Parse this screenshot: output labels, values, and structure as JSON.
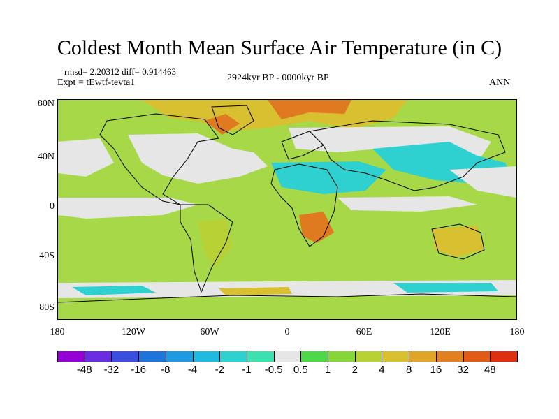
{
  "title": "Coldest Month Mean Surface Air Temperature (in C)",
  "stats": "rmsd= 2.20312 diff= 0.914463",
  "experiment": "Expt = tEwtf-tevta1",
  "period": "2924kyr BP - 0000kyr BP",
  "season": "ANN",
  "axes": {
    "y_ticks": [
      "80N",
      "40N",
      "0",
      "40S",
      "80S"
    ],
    "x_ticks": [
      "180",
      "120W",
      "60W",
      "0",
      "60E",
      "120E",
      "180"
    ]
  },
  "colorbar": {
    "labels": [
      "-48",
      "-32",
      "-16",
      "-8",
      "-4",
      "-2",
      "-1",
      "-0.5",
      "0.5",
      "1",
      "2",
      "4",
      "8",
      "16",
      "32",
      "48"
    ],
    "colors": [
      "#9400d3",
      "#6a2ee0",
      "#3a4fe0",
      "#1e74d8",
      "#1f99e0",
      "#22b9e0",
      "#2ed1d0",
      "#3fe0b0",
      "#e6e6e6",
      "#4fd64a",
      "#86d63a",
      "#b8d236",
      "#d8c030",
      "#e0a428",
      "#e08020",
      "#e05a18",
      "#dc3010"
    ]
  },
  "legend": {
    "ocean": "#a6d847",
    "neutral": "#e6e6e6",
    "cool": "#2ed1d0",
    "warm": "#d8c030",
    "hot": "#e07a20",
    "land_outline": "#000000"
  }
}
